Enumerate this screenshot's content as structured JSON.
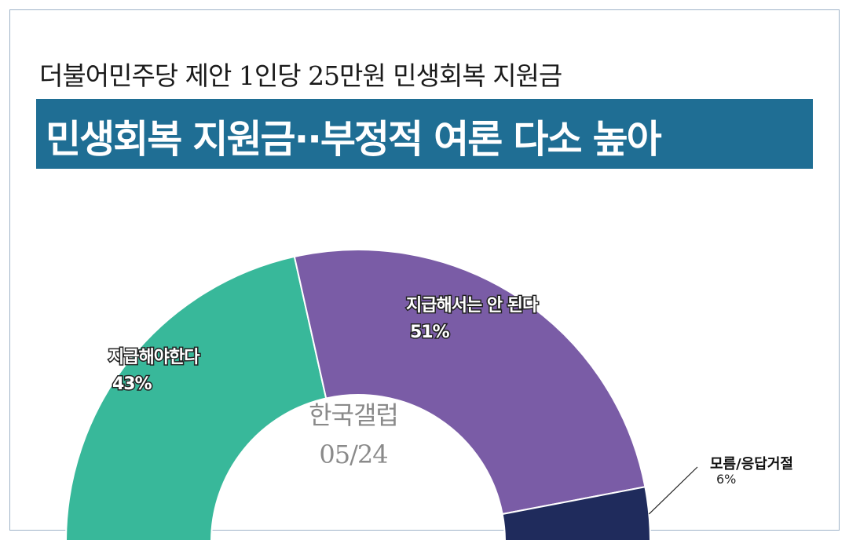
{
  "header": {
    "subtitle": "더불어민주당 제안 1인당 25만원 민생회복 지원금",
    "title": "민생회복 지원금··부정적 여론 다소 높아"
  },
  "center": {
    "source": "한국갤럽",
    "date": "05/24"
  },
  "colors": {
    "title_bar": "#1f6e94",
    "support": "#38b89a",
    "oppose": "#7a5ca6",
    "unknown": "#1f2b5c"
  },
  "chart_data": {
    "type": "pie",
    "style": "half-donut",
    "title": "민생회복 지원금··부정적 여론 다소 높아",
    "categories": [
      "지급해야한다",
      "지급해서는 안 된다",
      "모름/응답거절"
    ],
    "values": [
      43,
      51,
      6
    ],
    "value_labels": [
      "43%",
      "51%",
      "6%"
    ],
    "colors": [
      "#38b89a",
      "#7a5ca6",
      "#1f2b5c"
    ]
  }
}
